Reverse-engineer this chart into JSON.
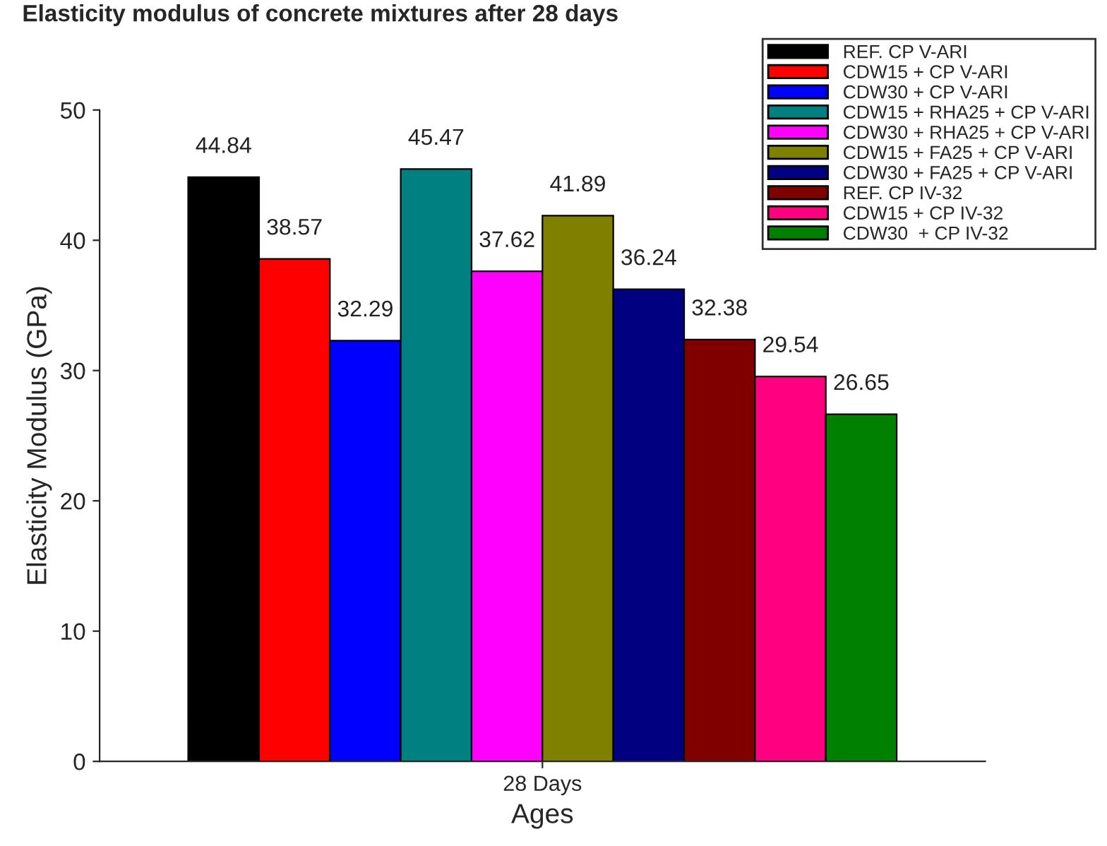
{
  "chart_data": {
    "type": "bar",
    "title": "Elasticity modulus of concrete mixtures after 28 days",
    "xlabel": "Ages",
    "ylabel": "Elasticity Modulus (GPa)",
    "categories": [
      "28 Days"
    ],
    "series": [
      {
        "name": "REF. CP V-ARI",
        "color": "#000000",
        "values": [
          44.84
        ]
      },
      {
        "name": "CDW15 + CP V-ARI",
        "color": "#ff0000",
        "values": [
          38.57
        ]
      },
      {
        "name": "CDW30 + CP V-ARI",
        "color": "#0000ff",
        "values": [
          32.29
        ]
      },
      {
        "name": "CDW15 + RHA25 + CP V-ARI",
        "color": "#008080",
        "values": [
          45.47
        ]
      },
      {
        "name": "CDW30 + RHA25 + CP V-ARI",
        "color": "#ff00ff",
        "values": [
          37.62
        ]
      },
      {
        "name": "CDW15 + FA25 + CP V-ARI",
        "color": "#808000",
        "values": [
          41.89
        ]
      },
      {
        "name": "CDW30 + FA25 + CP V-ARI",
        "color": "#000080",
        "values": [
          36.24
        ]
      },
      {
        "name": "REF. CP IV-32",
        "color": "#800000",
        "values": [
          32.38
        ]
      },
      {
        "name": "CDW15 + CP IV-32",
        "color": "#ff0080",
        "values": [
          29.54
        ]
      },
      {
        "name": "CDW30  + CP IV-32",
        "color": "#008000",
        "values": [
          26.65
        ]
      }
    ],
    "ylim": [
      0,
      50
    ],
    "yticks": [
      0,
      10,
      20,
      30,
      40,
      50
    ],
    "grid": false,
    "legend": "top right",
    "data_labels": true
  }
}
